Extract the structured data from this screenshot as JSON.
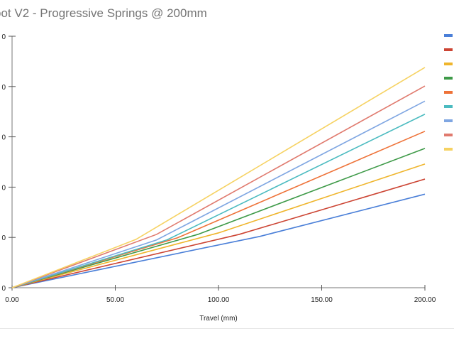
{
  "chart_data": {
    "type": "line",
    "title": "oot V2 - Progressive Springs @ 200mm",
    "xlabel": "Travel (mm)",
    "ylabel": "",
    "xlim": [
      0,
      200
    ],
    "ylim": [
      0,
      5
    ],
    "x_ticks": [
      "0.00",
      "50.00",
      "100.00",
      "150.00",
      "200.00"
    ],
    "y_ticks": [
      "0",
      "0",
      "0",
      "0",
      "0",
      "0"
    ],
    "legend_position": "right",
    "series": [
      {
        "name": "",
        "color": "#4a7fd8",
        "points": [
          [
            0,
            0
          ],
          [
            120,
            1.02
          ],
          [
            200,
            1.86
          ]
        ]
      },
      {
        "name": "",
        "color": "#cc4433",
        "points": [
          [
            0,
            0
          ],
          [
            110,
            1.06
          ],
          [
            200,
            2.16
          ]
        ]
      },
      {
        "name": "",
        "color": "#efb52c",
        "points": [
          [
            0,
            0
          ],
          [
            100,
            1.09
          ],
          [
            200,
            2.46
          ]
        ]
      },
      {
        "name": "",
        "color": "#3e9a48",
        "points": [
          [
            0,
            0
          ],
          [
            90,
            1.06
          ],
          [
            200,
            2.77
          ]
        ]
      },
      {
        "name": "",
        "color": "#ee7238",
        "points": [
          [
            0,
            0
          ],
          [
            80,
            0.99
          ],
          [
            200,
            3.11
          ]
        ]
      },
      {
        "name": "",
        "color": "#4bbbc0",
        "points": [
          [
            0,
            0
          ],
          [
            75,
            0.95
          ],
          [
            200,
            3.45
          ]
        ]
      },
      {
        "name": "",
        "color": "#7fa6e2",
        "points": [
          [
            0,
            0
          ],
          [
            70,
            0.95
          ],
          [
            200,
            3.71
          ]
        ]
      },
      {
        "name": "",
        "color": "#e07a6e",
        "points": [
          [
            0,
            0
          ],
          [
            70,
            1.06
          ],
          [
            200,
            4.01
          ]
        ]
      },
      {
        "name": "",
        "color": "#f6d262",
        "points": [
          [
            0,
            0
          ],
          [
            60,
            0.96
          ],
          [
            200,
            4.38
          ]
        ]
      }
    ]
  }
}
